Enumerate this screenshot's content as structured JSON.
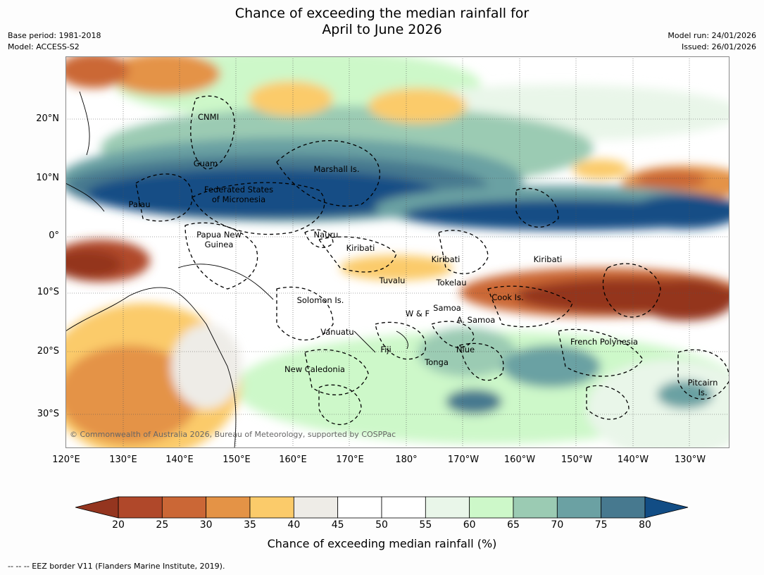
{
  "title": {
    "line1": "Chance of exceeding the median rainfall for",
    "line2": "April to June 2026"
  },
  "meta_left": {
    "base_period": "Base period: 1981-2018",
    "model": "Model: ACCESS-S2"
  },
  "meta_right": {
    "model_run": "Model run: 24/01/2026",
    "issued": "Issued: 26/01/2026"
  },
  "map": {
    "copyright": "© Commonwealth of Australia 2026, Bureau of Meteorology, supported by COSPPac",
    "lat_ticks": [
      "20°N",
      "10°N",
      "0°",
      "10°S",
      "20°S",
      "30°S"
    ],
    "lon_ticks": [
      "120°E",
      "130°E",
      "140°E",
      "150°E",
      "160°E",
      "170°E",
      "180°",
      "170°W",
      "160°W",
      "150°W",
      "140°W",
      "130°W"
    ],
    "regions": [
      "CNMI",
      "Guam",
      "Marshall Is.",
      "Federated States",
      "of Micronesia",
      "Palau",
      "Papua New",
      "Guinea",
      "Nauru",
      "Kiribati",
      "Kiribati",
      "Kiribati",
      "Tuvalu",
      "Tokelau",
      "Cook Is.",
      "Solomon Is.",
      "Samoa",
      "W & F",
      "A. Samoa",
      "Vanuatu",
      "Fiji",
      "Niue",
      "French Polynesia",
      "Tonga",
      "New Caledonia",
      "Pitcairn",
      "Is."
    ]
  },
  "colorbar": {
    "title": "Chance of exceeding median rainfall (%)",
    "labels": [
      "20",
      "25",
      "30",
      "35",
      "40",
      "45",
      "50",
      "55",
      "60",
      "65",
      "70",
      "75",
      "80"
    ],
    "colors": [
      "#b0482a",
      "#cb6736",
      "#e49346",
      "#fbcb6a",
      "#eeece7",
      "#ffffff",
      "#ffffff",
      "#e9f6e9",
      "#cdf8c9",
      "#9bcbb3",
      "#6ba1a3",
      "#47798f"
    ],
    "low_color": "#94351f",
    "high_color": "#124d85"
  },
  "footer": "--  --  -- EEZ border V11 (Flanders Marine Institute, 2019)."
}
